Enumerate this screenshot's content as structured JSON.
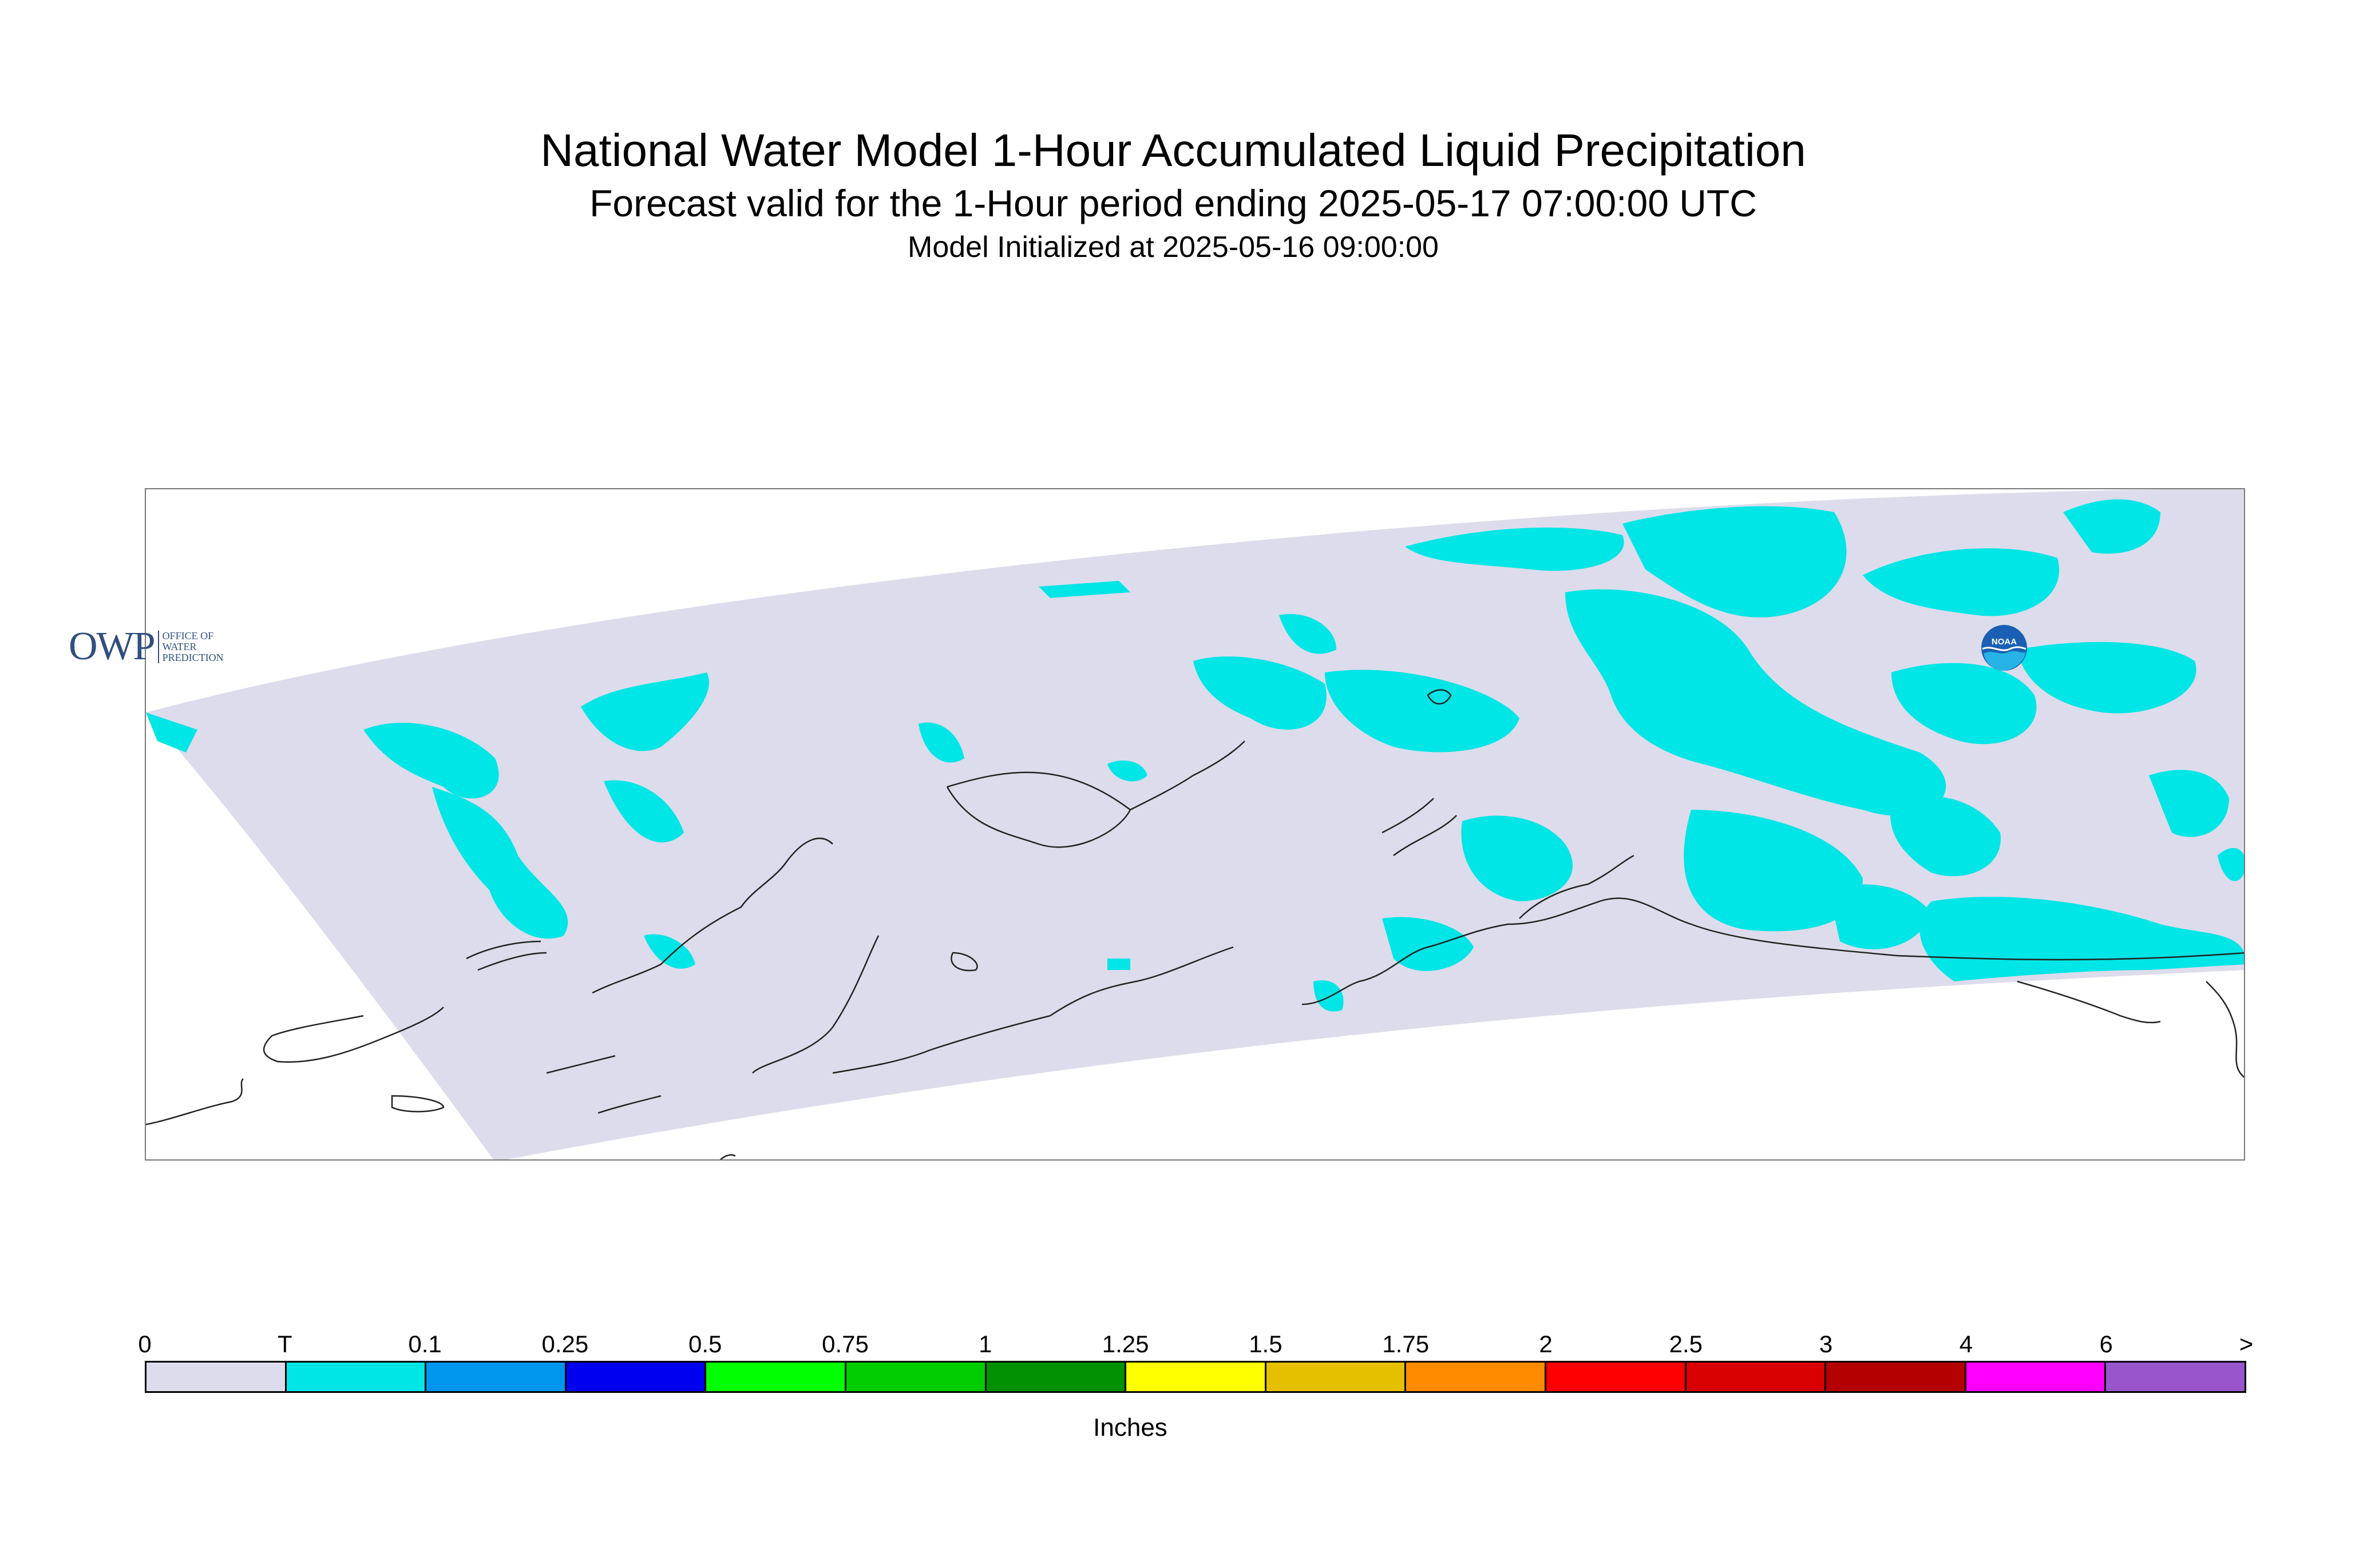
{
  "title": "National Water Model 1-Hour Accumulated Liquid Precipitation",
  "subtitle": "Forecast valid for the 1-Hour period ending 2025-05-17 07:00:00 UTC",
  "init_line": "Model Initialized at 2025-05-16 09:00:00",
  "logos": {
    "owp_text": "OWP",
    "owp_sub": [
      "OFFICE OF",
      "WATER",
      "PREDICTION"
    ],
    "noaa_text": "NOAA"
  },
  "map": {
    "domain_color": "#dcdcec",
    "precip_color": "#00e5e5",
    "coastline_color": "#222222",
    "background": "#ffffff"
  },
  "legend": {
    "units": "Inches",
    "tick_labels": [
      "0",
      "T",
      "0.1",
      "0.25",
      "0.5",
      "0.75",
      "1",
      "1.25",
      "1.5",
      "1.75",
      "2",
      "2.5",
      "3",
      "4",
      "6",
      ">"
    ],
    "colors": [
      "#dcdcec",
      "#00e5e5",
      "#0096ee",
      "#0000f0",
      "#00ff00",
      "#00cc00",
      "#009000",
      "#ffff00",
      "#e5c000",
      "#ff8c00",
      "#ff0000",
      "#d80000",
      "#b40000",
      "#ff00ff",
      "#9955cc"
    ]
  }
}
